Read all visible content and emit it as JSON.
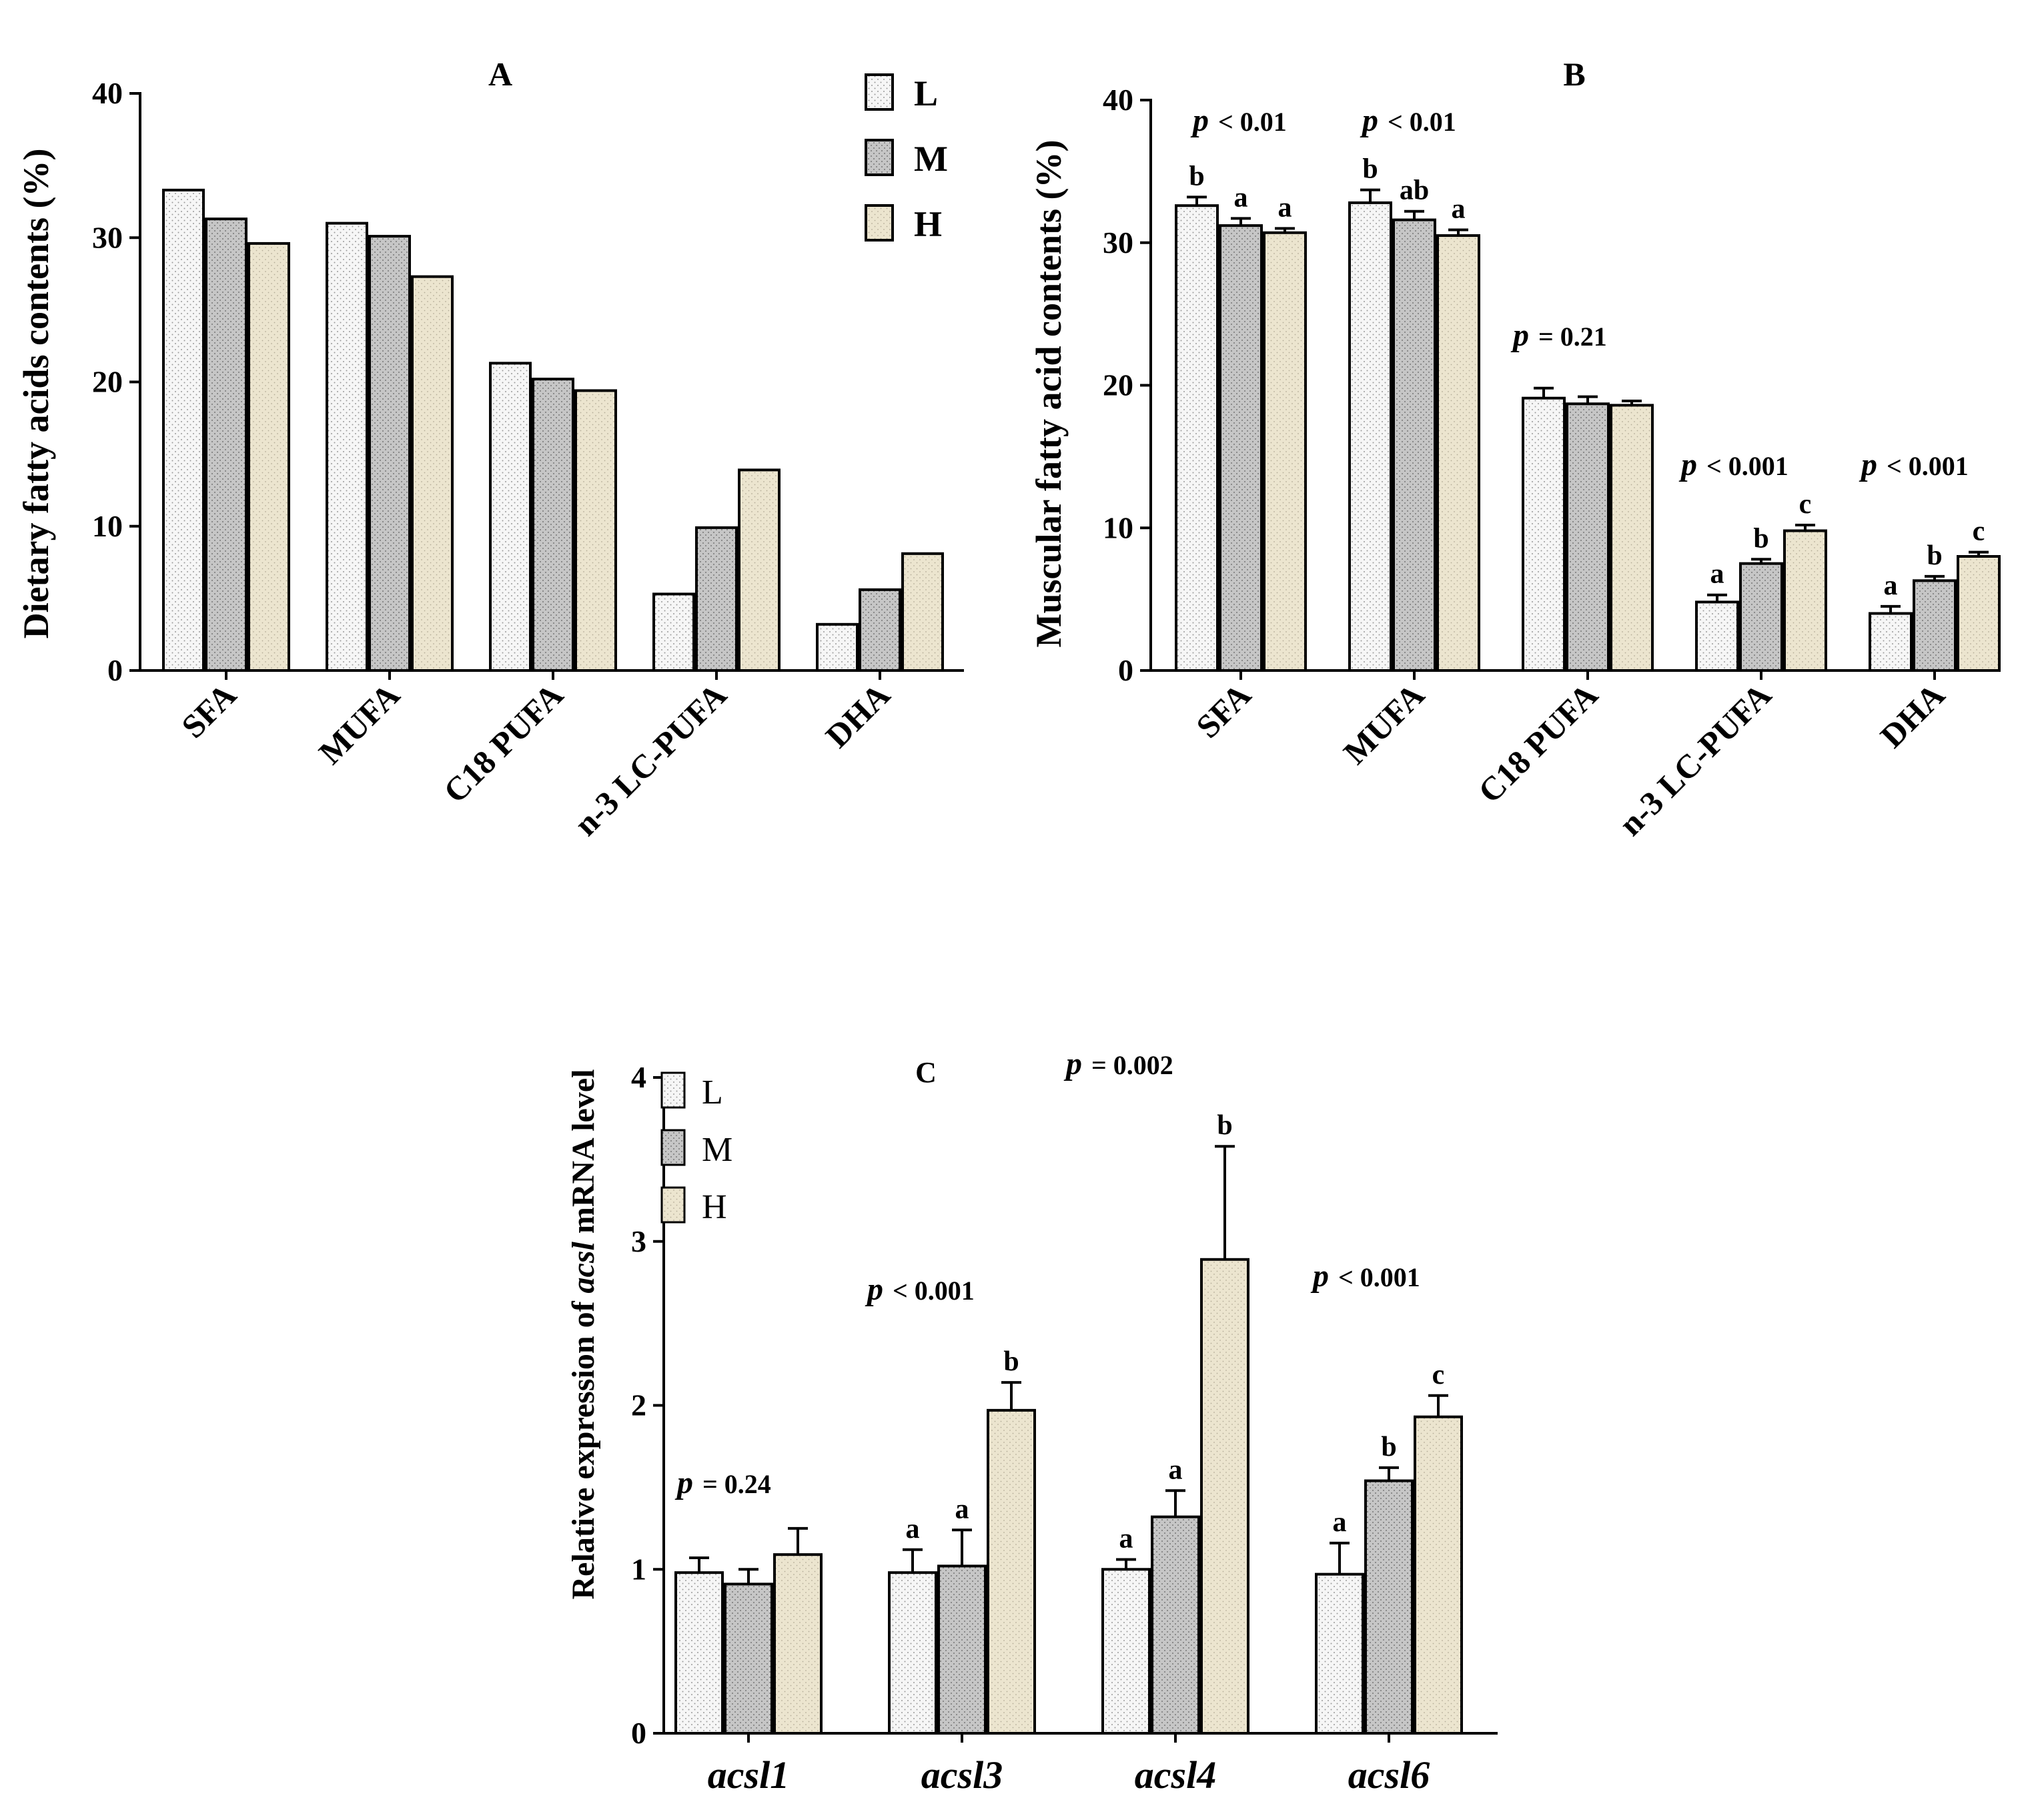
{
  "figure": {
    "colors": {
      "L": "#f5f5f5",
      "M": "#c8c8c8",
      "H": "#ece5cf",
      "stroke": "#000000"
    },
    "series_names": [
      "L",
      "M",
      "H"
    ]
  },
  "chart_data": [
    {
      "id": "A",
      "type": "bar",
      "title": "A",
      "ylabel": "Dietary fatty acids contents (%)",
      "xlabel": "",
      "ylim": [
        0,
        40
      ],
      "yticks": [
        0,
        10,
        20,
        30,
        40
      ],
      "categories": [
        "SFA",
        "MUFA",
        "C18 PUFA",
        "n-3 LC-PUFA",
        "DHA"
      ],
      "series": [
        {
          "name": "L",
          "values": [
            33.3,
            31.0,
            21.3,
            5.3,
            3.2
          ]
        },
        {
          "name": "M",
          "values": [
            31.3,
            30.1,
            20.2,
            9.9,
            5.6
          ]
        },
        {
          "name": "H",
          "values": [
            29.6,
            27.3,
            19.4,
            13.9,
            8.1
          ]
        }
      ],
      "legend": {
        "position": "top-right",
        "labels": [
          "L",
          "M",
          "H"
        ]
      }
    },
    {
      "id": "B",
      "type": "bar",
      "title": "B",
      "ylabel": "Muscular fatty acid contents (%)",
      "xlabel": "",
      "ylim": [
        0,
        40
      ],
      "yticks": [
        0,
        10,
        20,
        30,
        40
      ],
      "categories": [
        "SFA",
        "MUFA",
        "C18 PUFA",
        "n-3 LC-PUFA",
        "DHA"
      ],
      "series": [
        {
          "name": "L",
          "values": [
            32.6,
            32.8,
            19.1,
            4.8,
            4.0
          ],
          "errors": [
            0.6,
            0.9,
            0.7,
            0.5,
            0.5
          ]
        },
        {
          "name": "M",
          "values": [
            31.2,
            31.6,
            18.7,
            7.5,
            6.3
          ],
          "errors": [
            0.5,
            0.6,
            0.5,
            0.3,
            0.3
          ]
        },
        {
          "name": "H",
          "values": [
            30.7,
            30.5,
            18.6,
            9.8,
            8.0
          ],
          "errors": [
            0.3,
            0.4,
            0.3,
            0.4,
            0.3
          ]
        }
      ],
      "significance": [
        [
          "b",
          "a",
          "a"
        ],
        [
          "b",
          "ab",
          "a"
        ],
        [
          "",
          "",
          ""
        ],
        [
          "a",
          "b",
          "c"
        ],
        [
          "a",
          "b",
          "c"
        ]
      ],
      "p_values": [
        {
          "p": "p",
          "text": "< 0.01"
        },
        {
          "p": "p",
          "text": "< 0.01"
        },
        {
          "p": "p",
          "text": "= 0.21"
        },
        {
          "p": "p",
          "text": "< 0.001"
        },
        {
          "p": "p",
          "text": "< 0.001"
        }
      ]
    },
    {
      "id": "C",
      "type": "bar",
      "title": "C",
      "ylabel_pre": "Relative expression of ",
      "ylabel_italic": "acsl",
      "ylabel_post": " mRNA level",
      "xlabel": "",
      "ylim": [
        0,
        4
      ],
      "yticks": [
        0,
        1,
        2,
        3,
        4
      ],
      "categories": [
        "acsl1",
        "acsl3",
        "acsl4",
        "acsl6"
      ],
      "series": [
        {
          "name": "L",
          "values": [
            0.98,
            0.98,
            1.0,
            0.97
          ],
          "errors": [
            0.09,
            0.14,
            0.06,
            0.19
          ]
        },
        {
          "name": "M",
          "values": [
            0.91,
            1.02,
            1.32,
            1.54
          ],
          "errors": [
            0.09,
            0.22,
            0.16,
            0.08
          ]
        },
        {
          "name": "H",
          "values": [
            1.09,
            1.97,
            2.89,
            1.93
          ],
          "errors": [
            0.16,
            0.17,
            0.69,
            0.13
          ]
        }
      ],
      "significance": [
        [
          "",
          "",
          ""
        ],
        [
          "a",
          "a",
          "b"
        ],
        [
          "a",
          "a",
          "b"
        ],
        [
          "a",
          "b",
          "c"
        ]
      ],
      "p_values": [
        {
          "p": "p",
          "text": "= 0.24"
        },
        {
          "p": "p",
          "text": "< 0.001"
        },
        {
          "p": "p",
          "text": "= 0.002"
        },
        {
          "p": "p",
          "text": "< 0.001"
        }
      ],
      "legend": {
        "position": "top-left",
        "labels": [
          "L",
          "M",
          "H"
        ]
      }
    }
  ]
}
